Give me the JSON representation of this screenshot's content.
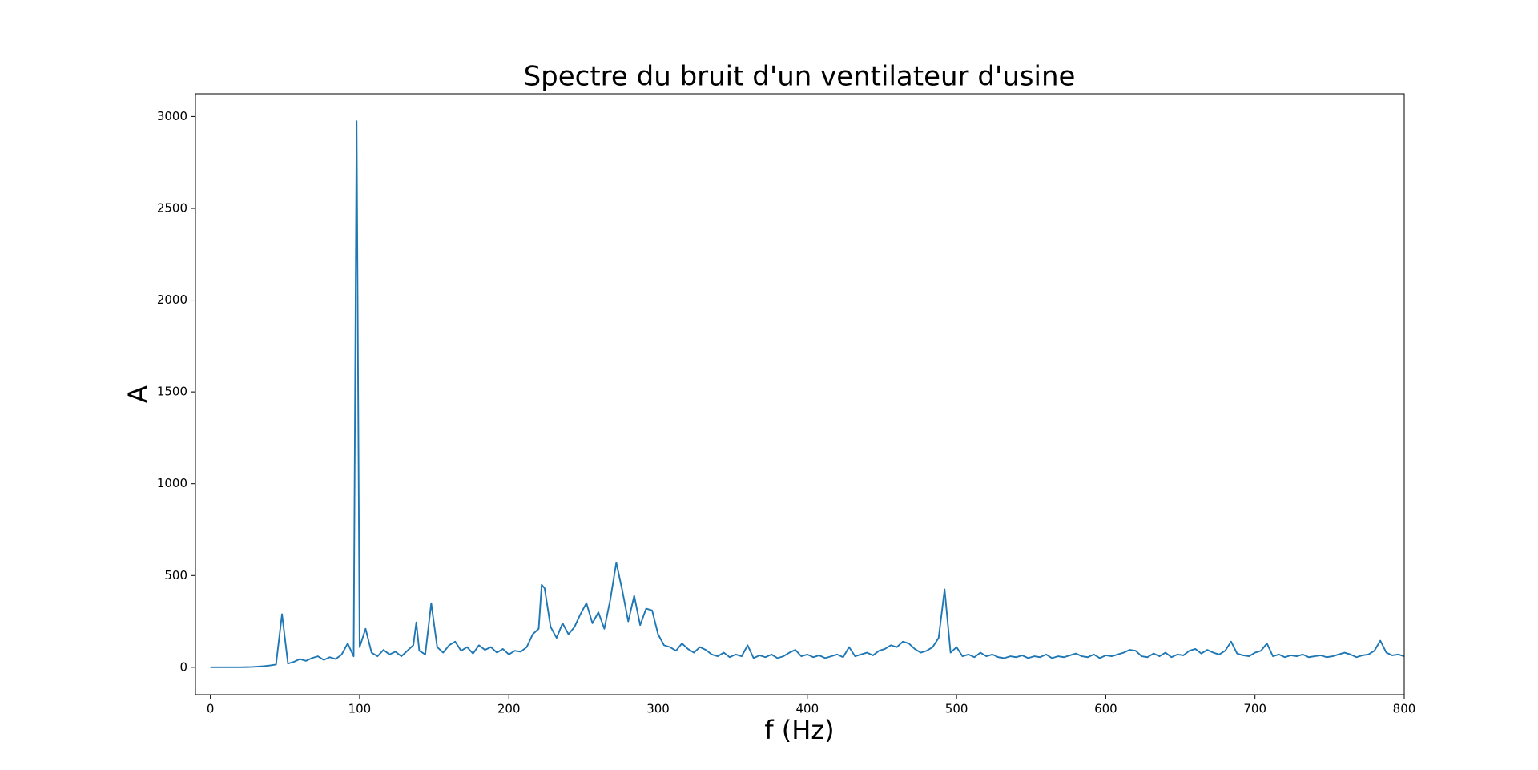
{
  "chart_data": {
    "type": "line",
    "title": "Spectre du bruit d'un ventilateur d'usine",
    "xlabel": "f (Hz)",
    "ylabel": "A",
    "xlim": [
      -10,
      800
    ],
    "ylim": [
      -149,
      3124
    ],
    "xticks": [
      0,
      100,
      200,
      300,
      400,
      500,
      600,
      700,
      800
    ],
    "yticks": [
      0,
      500,
      1000,
      1500,
      2000,
      2500,
      3000
    ],
    "grid": false,
    "x": [
      0,
      4,
      8,
      12,
      16,
      20,
      24,
      28,
      32,
      36,
      40,
      44,
      48,
      52,
      56,
      60,
      64,
      68,
      72,
      76,
      80,
      84,
      88,
      92,
      96,
      98,
      100,
      104,
      108,
      112,
      116,
      120,
      124,
      128,
      132,
      136,
      138,
      140,
      144,
      148,
      152,
      156,
      160,
      164,
      168,
      172,
      176,
      180,
      184,
      188,
      192,
      196,
      200,
      204,
      208,
      212,
      216,
      220,
      222,
      224,
      228,
      232,
      236,
      240,
      244,
      248,
      252,
      256,
      260,
      264,
      268,
      272,
      276,
      280,
      284,
      288,
      292,
      296,
      300,
      304,
      308,
      312,
      316,
      320,
      324,
      328,
      332,
      336,
      340,
      344,
      348,
      352,
      356,
      360,
      364,
      368,
      372,
      376,
      380,
      384,
      388,
      392,
      396,
      400,
      404,
      408,
      412,
      416,
      420,
      424,
      428,
      432,
      436,
      440,
      444,
      448,
      452,
      456,
      460,
      464,
      468,
      472,
      476,
      480,
      484,
      488,
      492,
      496,
      500,
      504,
      508,
      512,
      516,
      520,
      524,
      528,
      532,
      536,
      540,
      544,
      548,
      552,
      556,
      560,
      564,
      568,
      572,
      576,
      580,
      584,
      588,
      592,
      596,
      600,
      604,
      608,
      612,
      616,
      620,
      624,
      628,
      632,
      636,
      640,
      644,
      648,
      652,
      656,
      660,
      664,
      668,
      672,
      676,
      680,
      684,
      688,
      692,
      696,
      700,
      704,
      708,
      712,
      716,
      720,
      724,
      728,
      732,
      736,
      740,
      744,
      748,
      752,
      756,
      760,
      764,
      768,
      772,
      776,
      780,
      784,
      788,
      792,
      796,
      800
    ],
    "series": [
      {
        "name": "A",
        "color": "#1f77b4",
        "values": [
          0,
          0,
          0,
          0,
          0,
          0,
          1,
          2,
          4,
          6,
          10,
          15,
          290,
          20,
          30,
          45,
          35,
          50,
          60,
          40,
          55,
          45,
          70,
          130,
          60,
          2975,
          110,
          210,
          80,
          60,
          95,
          70,
          85,
          60,
          90,
          120,
          245,
          90,
          70,
          350,
          110,
          80,
          120,
          140,
          90,
          110,
          75,
          120,
          95,
          110,
          80,
          100,
          70,
          90,
          85,
          110,
          180,
          210,
          450,
          430,
          220,
          160,
          240,
          180,
          220,
          290,
          350,
          240,
          300,
          210,
          370,
          570,
          420,
          250,
          390,
          230,
          320,
          310,
          180,
          120,
          110,
          90,
          130,
          100,
          80,
          110,
          95,
          70,
          60,
          80,
          55,
          70,
          60,
          120,
          50,
          65,
          55,
          70,
          50,
          60,
          80,
          95,
          60,
          70,
          55,
          65,
          50,
          60,
          70,
          55,
          110,
          60,
          70,
          80,
          65,
          90,
          100,
          120,
          110,
          140,
          130,
          100,
          80,
          90,
          110,
          160,
          425,
          80,
          110,
          60,
          70,
          55,
          80,
          60,
          70,
          55,
          50,
          60,
          55,
          65,
          50,
          60,
          55,
          70,
          50,
          60,
          55,
          65,
          75,
          60,
          55,
          70,
          50,
          65,
          60,
          70,
          80,
          95,
          90,
          60,
          55,
          75,
          60,
          80,
          55,
          70,
          65,
          90,
          100,
          75,
          95,
          80,
          70,
          90,
          140,
          75,
          65,
          60,
          80,
          90,
          130,
          60,
          70,
          55,
          65,
          60,
          70,
          55,
          60,
          65,
          55,
          60,
          70,
          80,
          70,
          55,
          65,
          70,
          90,
          145,
          80,
          65,
          70,
          60
        ]
      }
    ]
  }
}
